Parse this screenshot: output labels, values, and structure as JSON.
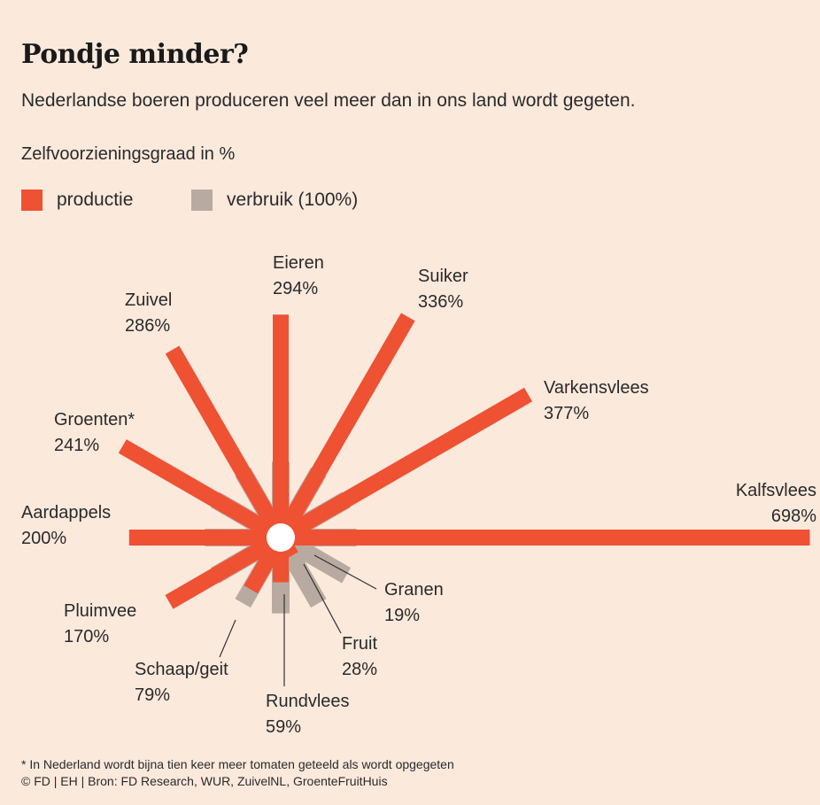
{
  "header": {
    "title": "Pondje minder?",
    "subtitle": "Nederlandse boeren produceren veel meer dan in ons land wordt gegeten.",
    "unit_label": "Zelfvoorzieningsgraad in %"
  },
  "legend": {
    "production_label": "productie",
    "consumption_label": "verbruik (100%)"
  },
  "colors": {
    "production": "#ef5133",
    "consumption": "#b9aaa1",
    "background": "#fbe9dc",
    "center": "#ffffff"
  },
  "chart_data": {
    "type": "radial-bar",
    "title": "Pondje minder?",
    "unit": "%",
    "reference_value": 100,
    "categories": [
      {
        "name": "Kalfsvlees",
        "value_label": "698%",
        "value": 698
      },
      {
        "name": "Varkensvlees",
        "value_label": "377%",
        "value": 377
      },
      {
        "name": "Suiker",
        "value_label": "336%",
        "value": 336
      },
      {
        "name": "Eieren",
        "value_label": "294%",
        "value": 294
      },
      {
        "name": "Zuivel",
        "value_label": "286%",
        "value": 286
      },
      {
        "name": "Groenten*",
        "value_label": "241%",
        "value": 241
      },
      {
        "name": "Aardappels",
        "value_label": "200%",
        "value": 200
      },
      {
        "name": "Pluimvee",
        "value_label": "170%",
        "value": 170
      },
      {
        "name": "Schaap/geit",
        "value_label": "79%",
        "value": 79
      },
      {
        "name": "Rundvlees",
        "value_label": "59%",
        "value": 59
      },
      {
        "name": "Fruit",
        "value_label": "28%",
        "value": 28
      },
      {
        "name": "Granen",
        "value_label": "19%",
        "value": 19
      }
    ],
    "series": [
      {
        "name": "productie",
        "values": [
          698,
          377,
          336,
          294,
          286,
          241,
          200,
          170,
          79,
          59,
          28,
          19
        ]
      },
      {
        "name": "verbruik (100%)",
        "values": [
          100,
          100,
          100,
          100,
          100,
          100,
          100,
          100,
          100,
          100,
          100,
          100
        ]
      }
    ]
  },
  "footer": {
    "footnote": "* In Nederland wordt bijna tien keer meer tomaten geteeld als wordt opgegeten",
    "source": "© FD | EH | Bron: FD Research, WUR, ZuivelNL, GroenteFruitHuis"
  }
}
